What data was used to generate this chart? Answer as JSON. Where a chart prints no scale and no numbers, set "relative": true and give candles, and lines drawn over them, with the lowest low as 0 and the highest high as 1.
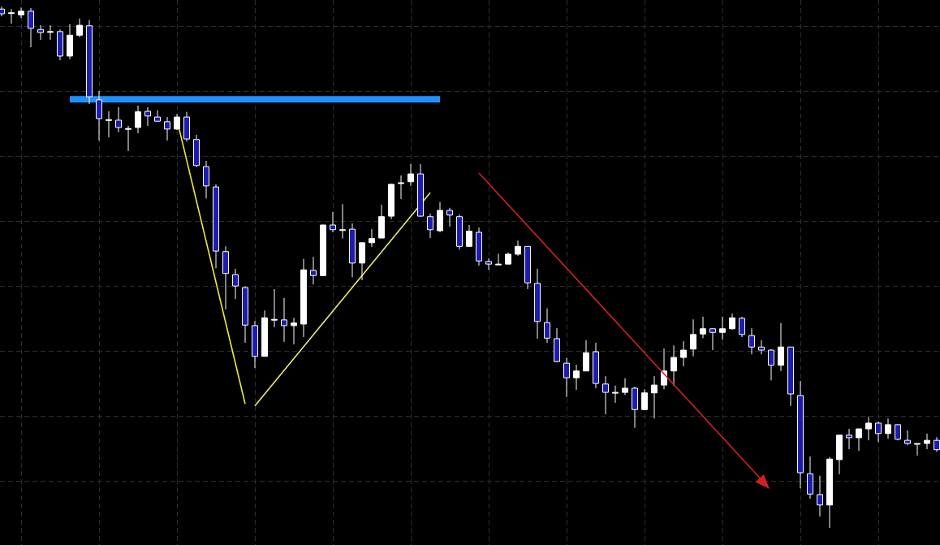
{
  "chart_data": {
    "type": "candlestick",
    "relative": true,
    "grid": true,
    "legend": false,
    "categories": [
      null,
      null,
      null,
      null,
      null,
      null,
      null,
      null,
      null,
      null,
      null,
      null,
      null,
      null,
      null,
      null,
      null,
      null,
      null,
      null,
      null,
      null,
      null,
      null,
      null,
      null,
      null,
      null,
      null,
      null,
      null,
      null,
      null,
      null,
      null,
      null,
      null,
      null,
      null,
      null,
      null,
      null,
      null,
      null,
      null,
      null,
      null,
      null,
      null,
      null,
      null,
      null,
      null,
      null,
      null,
      null,
      null,
      null,
      null,
      null,
      null,
      null,
      null,
      null,
      null,
      null,
      null,
      null,
      null,
      null,
      null,
      null,
      null,
      null,
      null,
      null,
      null,
      null,
      null,
      null,
      null,
      null,
      null,
      null,
      null,
      null,
      null,
      null,
      null,
      null,
      null,
      null,
      null,
      null,
      null,
      null,
      null
    ],
    "ohlc": [
      [
        0.995,
        1,
        0.981,
        0.986
      ],
      [
        0.988,
        0.995,
        0.967,
        0.988
      ],
      [
        0.984,
        0.998,
        0.978,
        0.991
      ],
      [
        0.991,
        0.997,
        0.922,
        0.958
      ],
      [
        0.956,
        0.964,
        0.936,
        0.95
      ],
      [
        0.952,
        0.964,
        0.936,
        0.952
      ],
      [
        0.952,
        0.956,
        0.897,
        0.905
      ],
      [
        0.905,
        0.966,
        0.899,
        0.945
      ],
      [
        0.945,
        0.977,
        0.941,
        0.964
      ],
      [
        0.963,
        0.974,
        0.813,
        0.827
      ],
      [
        0.821,
        0.838,
        0.743,
        0.785
      ],
      [
        0.783,
        0.799,
        0.749,
        0.783
      ],
      [
        0.782,
        0.807,
        0.759,
        0.768
      ],
      [
        0.766,
        0.771,
        0.723,
        0.766
      ],
      [
        0.768,
        0.81,
        0.757,
        0.798
      ],
      [
        0.799,
        0.807,
        0.771,
        0.79
      ],
      [
        0.788,
        0.801,
        0.779,
        0.78
      ],
      [
        0.779,
        0.788,
        0.743,
        0.765
      ],
      [
        0.765,
        0.794,
        0.763,
        0.788
      ],
      [
        0.788,
        0.798,
        0.741,
        0.746
      ],
      [
        0.745,
        0.754,
        0.692,
        0.695
      ],
      [
        0.693,
        0.704,
        0.632,
        0.656
      ],
      [
        0.654,
        0.659,
        0.498,
        0.531
      ],
      [
        0.53,
        0.54,
        0.419,
        0.488
      ],
      [
        0.486,
        0.497,
        0.439,
        0.464
      ],
      [
        0.461,
        0.463,
        0.355,
        0.389
      ],
      [
        0.388,
        0.397,
        0.307,
        0.329
      ],
      [
        0.329,
        0.417,
        0.329,
        0.403
      ],
      [
        0.4,
        0.458,
        0.385,
        0.4
      ],
      [
        0.399,
        0.441,
        0.357,
        0.388
      ],
      [
        0.388,
        0.403,
        0.352,
        0.393
      ],
      [
        0.391,
        0.516,
        0.366,
        0.495
      ],
      [
        0.494,
        0.52,
        0.467,
        0.484
      ],
      [
        0.484,
        0.581,
        0.483,
        0.581
      ],
      [
        0.581,
        0.606,
        0.567,
        0.572
      ],
      [
        0.572,
        0.621,
        0.555,
        0.572
      ],
      [
        0.573,
        0.584,
        0.481,
        0.508
      ],
      [
        0.508,
        0.547,
        0.475,
        0.547
      ],
      [
        0.547,
        0.573,
        0.539,
        0.555
      ],
      [
        0.556,
        0.62,
        0.556,
        0.597
      ],
      [
        0.598,
        0.66,
        0.592,
        0.659
      ],
      [
        0.662,
        0.676,
        0.631,
        0.662
      ],
      [
        0.664,
        0.698,
        0.656,
        0.679
      ],
      [
        0.679,
        0.698,
        0.597,
        0.598
      ],
      [
        0.597,
        0.603,
        0.556,
        0.572
      ],
      [
        0.57,
        0.625,
        0.567,
        0.609
      ],
      [
        0.609,
        0.614,
        0.578,
        0.6
      ],
      [
        0.597,
        0.601,
        0.534,
        0.54
      ],
      [
        0.54,
        0.581,
        0.54,
        0.569
      ],
      [
        0.567,
        0.576,
        0.503,
        0.512
      ],
      [
        0.511,
        0.517,
        0.495,
        0.506
      ],
      [
        0.506,
        0.526,
        0.505,
        0.506
      ],
      [
        0.506,
        0.528,
        0.505,
        0.525
      ],
      [
        0.525,
        0.551,
        0.522,
        0.54
      ],
      [
        0.54,
        0.54,
        0.458,
        0.47
      ],
      [
        0.469,
        0.497,
        0.363,
        0.396
      ],
      [
        0.394,
        0.421,
        0.355,
        0.364
      ],
      [
        0.363,
        0.383,
        0.318,
        0.319
      ],
      [
        0.316,
        0.326,
        0.251,
        0.288
      ],
      [
        0.288,
        0.313,
        0.265,
        0.301
      ],
      [
        0.301,
        0.36,
        0.301,
        0.336
      ],
      [
        0.338,
        0.355,
        0.268,
        0.277
      ],
      [
        0.276,
        0.291,
        0.218,
        0.26
      ],
      [
        0.26,
        0.273,
        0.24,
        0.26
      ],
      [
        0.26,
        0.287,
        0.255,
        0.268
      ],
      [
        0.268,
        0.271,
        0.192,
        0.227
      ],
      [
        0.227,
        0.266,
        0.226,
        0.259
      ],
      [
        0.259,
        0.291,
        0.21,
        0.274
      ],
      [
        0.274,
        0.344,
        0.266,
        0.301
      ],
      [
        0.301,
        0.35,
        0.273,
        0.327
      ],
      [
        0.327,
        0.358,
        0.31,
        0.341
      ],
      [
        0.343,
        0.4,
        0.329,
        0.371
      ],
      [
        0.372,
        0.405,
        0.364,
        0.382
      ],
      [
        0.382,
        0.382,
        0.341,
        0.375
      ],
      [
        0.375,
        0.405,
        0.361,
        0.382
      ],
      [
        0.382,
        0.411,
        0.38,
        0.403
      ],
      [
        0.402,
        0.405,
        0.366,
        0.371
      ],
      [
        0.369,
        0.383,
        0.333,
        0.347
      ],
      [
        0.347,
        0.36,
        0.333,
        0.341
      ],
      [
        0.341,
        0.343,
        0.283,
        0.312
      ],
      [
        0.312,
        0.393,
        0.301,
        0.347
      ],
      [
        0.347,
        0.347,
        0.234,
        0.257
      ],
      [
        0.254,
        0.282,
        0.076,
        0.106
      ],
      [
        0.104,
        0.137,
        0.056,
        0.065
      ],
      [
        0.064,
        0.1,
        0.022,
        0.044
      ],
      [
        0.044,
        0.136,
        0,
        0.132
      ],
      [
        0.131,
        0.178,
        0.103,
        0.178
      ],
      [
        0.178,
        0.19,
        0.151,
        0.173
      ],
      [
        0.173,
        0.19,
        0.148,
        0.19
      ],
      [
        0.19,
        0.213,
        0.168,
        0.201
      ],
      [
        0.201,
        0.204,
        0.165,
        0.181
      ],
      [
        0.181,
        0.21,
        0.171,
        0.198
      ],
      [
        0.198,
        0.198,
        0.168,
        0.17
      ],
      [
        0.168,
        0.187,
        0.159,
        0.162
      ],
      [
        0.162,
        0.162,
        0.139,
        0.162
      ],
      [
        0.162,
        0.181,
        0.151,
        0.168
      ],
      [
        0.168,
        0.174,
        0.146,
        0.15
      ]
    ],
    "colors": [
      "#1c1cb0",
      "#ffffff",
      "#ffffff",
      "#1c1cb0",
      "#1c1cb0",
      "#ffffff",
      "#1c1cb0",
      "#ffffff",
      "#ffffff",
      "#1c1cb0",
      "#1c1cb0",
      "#ffffff",
      "#1c1cb0",
      "#ffffff",
      "#ffffff",
      "#1c1cb0",
      "#1c1cb0",
      "#1c1cb0",
      "#ffffff",
      "#1c1cb0",
      "#1c1cb0",
      "#1c1cb0",
      "#1c1cb0",
      "#1c1cb0",
      "#1c1cb0",
      "#1c1cb0",
      "#1c1cb0",
      "#ffffff",
      "#ffffff",
      "#1c1cb0",
      "#ffffff",
      "#ffffff",
      "#1c1cb0",
      "#ffffff",
      "#1c1cb0",
      "#ffffff",
      "#1c1cb0",
      "#ffffff",
      "#ffffff",
      "#ffffff",
      "#ffffff",
      "#ffffff",
      "#ffffff",
      "#1c1cb0",
      "#1c1cb0",
      "#ffffff",
      "#1c1cb0",
      "#1c1cb0",
      "#ffffff",
      "#1c1cb0",
      "#1c1cb0",
      "#ffffff",
      "#ffffff",
      "#ffffff",
      "#1c1cb0",
      "#1c1cb0",
      "#1c1cb0",
      "#1c1cb0",
      "#1c1cb0",
      "#ffffff",
      "#ffffff",
      "#1c1cb0",
      "#1c1cb0",
      "#ffffff",
      "#ffffff",
      "#1c1cb0",
      "#ffffff",
      "#ffffff",
      "#ffffff",
      "#ffffff",
      "#ffffff",
      "#ffffff",
      "#ffffff",
      "#1c1cb0",
      "#ffffff",
      "#ffffff",
      "#1c1cb0",
      "#1c1cb0",
      "#1c1cb0",
      "#1c1cb0",
      "#ffffff",
      "#1c1cb0",
      "#1c1cb0",
      "#1c1cb0",
      "#1c1cb0",
      "#ffffff",
      "#ffffff",
      "#1c1cb0",
      "#ffffff",
      "#ffffff",
      "#1c1cb0",
      "#ffffff",
      "#1c1cb0",
      "#1c1cb0",
      "#ffffff",
      "#ffffff",
      "#1c1cb0"
    ],
    "series": [
      {
        "type": "line",
        "color": "#ecec3c",
        "values": [
          null,
          null,
          null,
          null,
          null,
          null,
          null,
          null,
          null,
          null,
          null,
          null,
          null,
          null,
          null,
          null,
          null,
          null,
          0.783,
          null,
          null,
          null,
          null,
          null,
          null,
          0.238,
          null,
          null,
          null,
          null,
          null,
          null,
          null,
          null,
          null,
          null,
          null,
          null,
          null,
          null,
          null,
          null,
          null,
          null,
          null,
          null,
          null,
          null,
          null,
          null,
          null,
          null,
          null,
          null,
          null,
          null,
          null,
          null,
          null,
          null,
          null,
          null,
          null,
          null,
          null,
          null,
          null,
          null,
          null,
          null,
          null,
          null,
          null,
          null,
          null,
          null,
          null,
          null,
          null,
          null,
          null,
          null,
          null,
          null,
          null,
          null,
          null,
          null,
          null,
          null,
          null,
          null,
          null,
          null,
          null,
          null,
          null
        ]
      },
      {
        "type": "line",
        "color": "#ecec6a",
        "values": [
          null,
          null,
          null,
          null,
          null,
          null,
          null,
          null,
          null,
          null,
          null,
          null,
          null,
          null,
          null,
          null,
          null,
          null,
          null,
          null,
          null,
          null,
          null,
          null,
          null,
          null,
          0.234,
          null,
          null,
          null,
          null,
          null,
          null,
          null,
          null,
          null,
          null,
          null,
          null,
          null,
          null,
          null,
          null,
          null,
          0.643,
          null,
          null,
          null,
          null,
          null,
          null,
          null,
          null,
          null,
          null,
          null,
          null,
          null,
          null,
          null,
          null,
          null,
          null,
          null,
          null,
          null,
          null,
          null,
          null,
          null,
          null,
          null,
          null,
          null,
          null,
          null,
          null,
          null,
          null,
          null,
          null,
          null,
          null,
          null,
          null,
          null,
          null,
          null,
          null,
          null,
          null,
          null,
          null,
          null,
          null,
          null,
          null
        ]
      },
      {
        "type": "line",
        "color": "#1e90ff",
        "values": [
          null,
          null,
          null,
          null,
          null,
          null,
          null,
          0.822,
          null,
          null,
          null,
          null,
          null,
          null,
          null,
          null,
          null,
          null,
          null,
          null,
          null,
          null,
          null,
          null,
          null,
          null,
          null,
          null,
          null,
          null,
          null,
          null,
          null,
          null,
          null,
          null,
          null,
          null,
          null,
          null,
          null,
          null,
          null,
          null,
          null,
          0.822,
          null,
          null,
          null,
          null,
          null,
          null,
          null,
          null,
          null,
          null,
          null,
          null,
          null,
          null,
          null,
          null,
          null,
          null,
          null,
          null,
          null,
          null,
          null,
          null,
          null,
          null,
          null,
          null,
          null,
          null,
          null,
          null,
          null,
          null,
          null,
          null,
          null,
          null,
          null,
          null,
          null,
          null,
          null,
          null,
          null,
          null,
          null,
          null,
          null,
          null,
          null
        ]
      }
    ]
  }
}
